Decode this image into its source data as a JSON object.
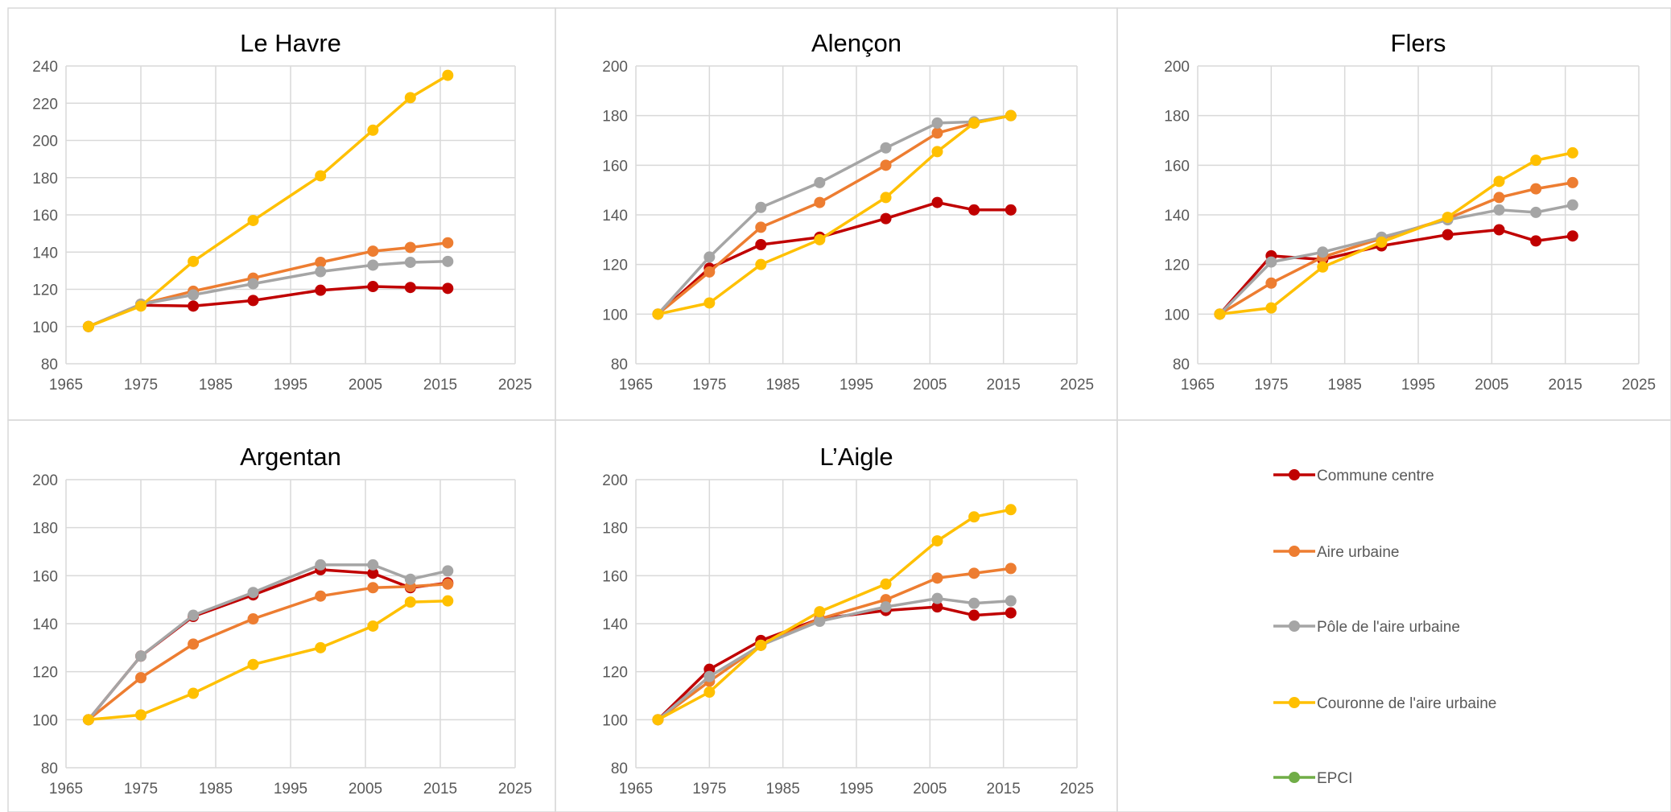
{
  "series_meta": [
    {
      "name": "Commune centre",
      "color": "#C00000"
    },
    {
      "name": "Aire urbaine",
      "color": "#ED7D31"
    },
    {
      "name": "Pôle de l'aire urbaine",
      "color": "#A5A5A5"
    },
    {
      "name": "Couronne de l'aire urbaine",
      "color": "#FFC000"
    },
    {
      "name": "EPCI",
      "color": "#70AD47"
    }
  ],
  "chart_data": [
    {
      "type": "line",
      "title": "Le Havre",
      "xlim": [
        1965,
        2025
      ],
      "ylim": [
        80,
        240
      ],
      "xticks": [
        1965,
        1975,
        1985,
        1995,
        2005,
        2015,
        2025
      ],
      "yticks": [
        80,
        100,
        120,
        140,
        160,
        180,
        200,
        220,
        240
      ],
      "x": [
        1968,
        1975,
        1982,
        1990,
        1999,
        2006,
        2011,
        2016
      ],
      "series": [
        {
          "name": "Commune centre",
          "values": [
            100,
            111.5,
            111,
            114,
            119.5,
            121.5,
            121,
            120.5
          ]
        },
        {
          "name": "Aire urbaine",
          "values": [
            100,
            112,
            119,
            126,
            134.5,
            140.5,
            142.5,
            145
          ]
        },
        {
          "name": "Pôle de l'aire urbaine",
          "values": [
            100,
            112,
            117,
            123,
            129.5,
            133,
            134.5,
            135
          ]
        },
        {
          "name": "Couronne de l'aire urbaine",
          "values": [
            100,
            111,
            135,
            157,
            181,
            205.5,
            223,
            235
          ]
        }
      ]
    },
    {
      "type": "line",
      "title": "Alençon",
      "xlim": [
        1965,
        2025
      ],
      "ylim": [
        80,
        200
      ],
      "xticks": [
        1965,
        1975,
        1985,
        1995,
        2005,
        2015,
        2025
      ],
      "yticks": [
        80,
        100,
        120,
        140,
        160,
        180,
        200
      ],
      "x": [
        1968,
        1975,
        1982,
        1990,
        1999,
        2006,
        2011,
        2016
      ],
      "series": [
        {
          "name": "Commune centre",
          "values": [
            100,
            118.5,
            128,
            131,
            138.5,
            145,
            142,
            142
          ]
        },
        {
          "name": "Aire urbaine",
          "values": [
            100,
            117,
            135,
            145,
            160,
            173,
            177,
            180
          ]
        },
        {
          "name": "Pôle de l'aire urbaine",
          "values": [
            100,
            123,
            143,
            153,
            167,
            177,
            177.5,
            180
          ]
        },
        {
          "name": "Couronne de l'aire urbaine",
          "values": [
            100,
            104.5,
            120,
            130,
            147,
            165.5,
            177,
            180
          ]
        }
      ]
    },
    {
      "type": "line",
      "title": "Flers",
      "xlim": [
        1965,
        2025
      ],
      "ylim": [
        80,
        200
      ],
      "xticks": [
        1965,
        1975,
        1985,
        1995,
        2005,
        2015,
        2025
      ],
      "yticks": [
        80,
        100,
        120,
        140,
        160,
        180,
        200
      ],
      "x": [
        1968,
        1975,
        1982,
        1990,
        1999,
        2006,
        2011,
        2016
      ],
      "series": [
        {
          "name": "Commune centre",
          "values": [
            100,
            123.5,
            122,
            127.5,
            132,
            134,
            129.5,
            131.5
          ]
        },
        {
          "name": "Aire urbaine",
          "values": [
            100,
            112.5,
            123,
            130.5,
            138.5,
            147,
            150.5,
            153
          ]
        },
        {
          "name": "Pôle de l'aire urbaine",
          "values": [
            100,
            121,
            125,
            131,
            138,
            142,
            141,
            144
          ]
        },
        {
          "name": "Couronne de l'aire urbaine",
          "values": [
            100,
            102.5,
            119,
            129,
            139,
            153.5,
            162,
            165
          ]
        }
      ]
    },
    {
      "type": "line",
      "title": "Argentan",
      "xlim": [
        1965,
        2025
      ],
      "ylim": [
        80,
        200
      ],
      "xticks": [
        1965,
        1975,
        1985,
        1995,
        2005,
        2015,
        2025
      ],
      "yticks": [
        80,
        100,
        120,
        140,
        160,
        180,
        200
      ],
      "x": [
        1968,
        1975,
        1982,
        1990,
        1999,
        2006,
        2011,
        2016
      ],
      "series": [
        {
          "name": "Commune centre",
          "values": [
            100,
            126.5,
            143,
            152,
            162.5,
            161,
            155,
            157
          ]
        },
        {
          "name": "Aire urbaine",
          "values": [
            100,
            117.5,
            131.5,
            142,
            151.5,
            155,
            155.5,
            156.5
          ]
        },
        {
          "name": "Pôle de l'aire urbaine",
          "values": [
            100,
            126.5,
            143.5,
            153,
            164.5,
            164.5,
            158.5,
            162
          ]
        },
        {
          "name": "Couronne de l'aire urbaine",
          "values": [
            100,
            102,
            111,
            123,
            130,
            139,
            149,
            149.5
          ]
        }
      ]
    },
    {
      "type": "line",
      "title": "L’Aigle",
      "xlim": [
        1965,
        2025
      ],
      "ylim": [
        80,
        200
      ],
      "xticks": [
        1965,
        1975,
        1985,
        1995,
        2005,
        2015,
        2025
      ],
      "yticks": [
        80,
        100,
        120,
        140,
        160,
        180,
        200
      ],
      "x": [
        1968,
        1975,
        1982,
        1990,
        1999,
        2006,
        2011,
        2016
      ],
      "series": [
        {
          "name": "Commune centre",
          "values": [
            100,
            121,
            133,
            142,
            145.5,
            147,
            143.5,
            144.5
          ]
        },
        {
          "name": "Aire urbaine",
          "values": [
            100,
            116,
            131,
            142,
            150,
            159,
            161,
            163
          ]
        },
        {
          "name": "Pôle de l'aire urbaine",
          "values": [
            100,
            118,
            131,
            141,
            147,
            150.5,
            148.5,
            149.5
          ]
        },
        {
          "name": "Couronne de l'aire urbaine",
          "values": [
            100,
            111.5,
            131,
            145,
            156.5,
            174.5,
            184.5,
            187.5
          ]
        }
      ]
    }
  ]
}
